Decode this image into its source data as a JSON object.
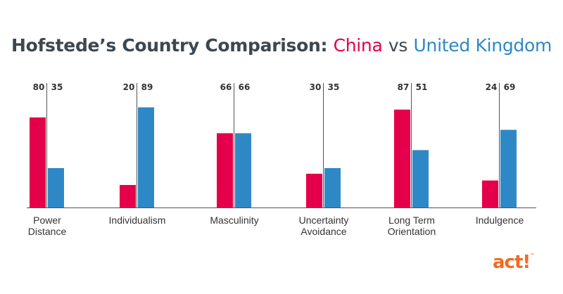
{
  "title": {
    "main": "Hofstede’s Country Comparison:",
    "series_a": "China",
    "joiner": "vs",
    "series_b": "United Kingdom"
  },
  "logo": {
    "text": "act!",
    "mark": "™"
  },
  "colors": {
    "china": "#e4004b",
    "uk": "#2f88c6",
    "axis": "#555555",
    "text": "#333333"
  },
  "chart_data": {
    "type": "bar",
    "categories": [
      [
        "Power",
        "Distance"
      ],
      [
        "Individualism"
      ],
      [
        "Masculinity"
      ],
      [
        "Uncertainty",
        "Avoidance"
      ],
      [
        "Long Term",
        "Orientation"
      ],
      [
        "Indulgence"
      ]
    ],
    "series": [
      {
        "name": "China",
        "values": [
          80,
          20,
          66,
          30,
          87,
          24
        ]
      },
      {
        "name": "United Kingdom",
        "values": [
          35,
          89,
          66,
          35,
          51,
          69
        ]
      }
    ],
    "ylim": [
      0,
      100
    ],
    "grid": false,
    "data_labels": "above-chart"
  }
}
